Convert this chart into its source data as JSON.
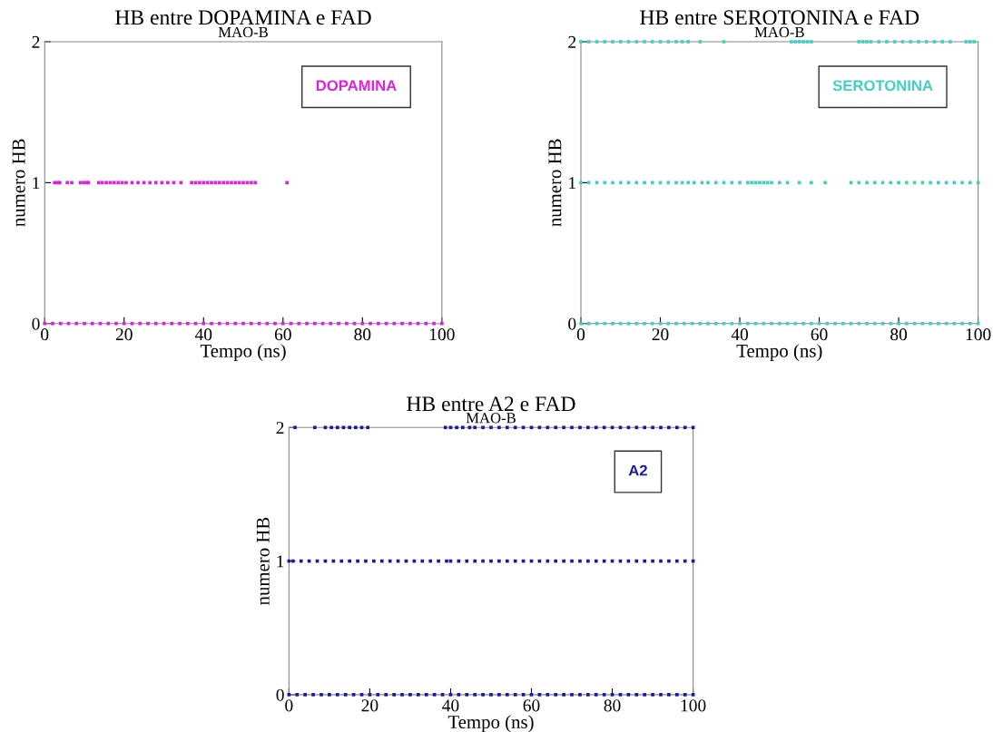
{
  "chart_data": [
    {
      "type": "scatter",
      "title": "HB entre DOPAMINA e FAD",
      "subtitle": "MAO-B",
      "xlabel": "Tempo (ns)",
      "ylabel": "numero HB",
      "xlim": [
        0,
        100
      ],
      "ylim": [
        0,
        2
      ],
      "xticks": [
        0,
        20,
        40,
        60,
        80,
        100
      ],
      "yticks": [
        0,
        1,
        2
      ],
      "marker": "square",
      "legend": "top right",
      "grid": false,
      "series": [
        {
          "name": "DOPAMINA",
          "color": "#e020e0",
          "x": [
            0,
            2,
            4,
            6,
            8,
            10,
            12,
            14,
            16,
            18,
            20,
            22,
            24,
            26,
            28,
            30,
            32,
            34,
            36,
            38,
            40,
            42,
            44,
            46,
            48,
            50,
            52,
            54,
            56,
            58,
            60,
            62,
            64,
            66,
            68,
            70,
            72,
            74,
            76,
            78,
            80,
            82,
            84,
            86,
            88,
            90,
            92,
            94,
            96,
            98,
            100,
            2.5,
            3.2,
            3.8,
            5.7,
            6.8,
            9,
            9.8,
            10.6,
            11,
            13.6,
            14.5,
            15.5,
            16.5,
            17.5,
            18.5,
            19.5,
            20.5,
            22,
            23.5,
            25,
            26.5,
            28,
            29.5,
            31,
            32.5,
            34.3,
            37,
            38,
            39,
            40,
            41,
            42,
            43,
            44,
            45,
            46,
            47,
            48,
            49,
            50,
            51,
            52,
            53,
            61
          ],
          "values": [
            0,
            0,
            0,
            0,
            0,
            0,
            0,
            0,
            0,
            0,
            0,
            0,
            0,
            0,
            0,
            0,
            0,
            0,
            0,
            0,
            0,
            0,
            0,
            0,
            0,
            0,
            0,
            0,
            0,
            0,
            0,
            0,
            0,
            0,
            0,
            0,
            0,
            0,
            0,
            0,
            0,
            0,
            0,
            0,
            0,
            0,
            0,
            0,
            0,
            0,
            0,
            1,
            1,
            1,
            1,
            1,
            1,
            1,
            1,
            1,
            1,
            1,
            1,
            1,
            1,
            1,
            1,
            1,
            1,
            1,
            1,
            1,
            1,
            1,
            1,
            1,
            1,
            1,
            1,
            1,
            1,
            1,
            1,
            1,
            1,
            1,
            1,
            1,
            1,
            1,
            1,
            1,
            1,
            1,
            1
          ]
        }
      ]
    },
    {
      "type": "scatter",
      "title": "HB entre SEROTONINA e FAD",
      "subtitle": "MAO-B",
      "xlabel": "Tempo (ns)",
      "ylabel": "numero HB",
      "xlim": [
        0,
        100
      ],
      "ylim": [
        0,
        2
      ],
      "xticks": [
        0,
        20,
        40,
        60,
        80,
        100
      ],
      "yticks": [
        0,
        1,
        2
      ],
      "marker": "square",
      "legend": "top right",
      "grid": false,
      "series": [
        {
          "name": "SEROTONINA",
          "color": "#40d0c0",
          "x": [
            0,
            2,
            4,
            6,
            8,
            10,
            12,
            14,
            16,
            18,
            20,
            22,
            24,
            26,
            28,
            30,
            32,
            34,
            36,
            38,
            40,
            42,
            44,
            46,
            48,
            50,
            52,
            54,
            56,
            58,
            60,
            62,
            64,
            66,
            68,
            70,
            72,
            74,
            76,
            78,
            80,
            82,
            84,
            86,
            88,
            90,
            92,
            94,
            96,
            98,
            100,
            0,
            2,
            4,
            6,
            8,
            10,
            12,
            14,
            16,
            18,
            20,
            22,
            24,
            25.5,
            27,
            28.5,
            30.5,
            32,
            34,
            36,
            38,
            40,
            42,
            43,
            44,
            45,
            46,
            47,
            48,
            50,
            52,
            55,
            58,
            61.5,
            68,
            70,
            72,
            74,
            76,
            78,
            80,
            82,
            84,
            86,
            88,
            90,
            92,
            94,
            96,
            98,
            100,
            0,
            2,
            4,
            6,
            8,
            10,
            12,
            14,
            16,
            18,
            20,
            22,
            24,
            25.5,
            27,
            30,
            36,
            53,
            54,
            55,
            56,
            57,
            58,
            70,
            71,
            72,
            73,
            75,
            77,
            79,
            81,
            83,
            85,
            87,
            89,
            91,
            93,
            97,
            98,
            99
          ],
          "values": [
            0,
            0,
            0,
            0,
            0,
            0,
            0,
            0,
            0,
            0,
            0,
            0,
            0,
            0,
            0,
            0,
            0,
            0,
            0,
            0,
            0,
            0,
            0,
            0,
            0,
            0,
            0,
            0,
            0,
            0,
            0,
            0,
            0,
            0,
            0,
            0,
            0,
            0,
            0,
            0,
            0,
            0,
            0,
            0,
            0,
            0,
            0,
            0,
            0,
            0,
            0,
            1,
            1,
            1,
            1,
            1,
            1,
            1,
            1,
            1,
            1,
            1,
            1,
            1,
            1,
            1,
            1,
            1,
            1,
            1,
            1,
            1,
            1,
            1,
            1,
            1,
            1,
            1,
            1,
            1,
            1,
            1,
            1,
            1,
            1,
            1,
            1,
            1,
            1,
            1,
            1,
            1,
            1,
            1,
            1,
            1,
            1,
            1,
            1,
            1,
            1,
            1,
            2,
            2,
            2,
            2,
            2,
            2,
            2,
            2,
            2,
            2,
            2,
            2,
            2,
            2,
            2,
            2,
            2,
            2,
            2,
            2,
            2,
            2,
            2,
            2,
            2,
            2,
            2,
            2,
            2,
            2,
            2,
            2,
            2,
            2,
            2,
            2,
            2,
            2,
            2,
            2
          ]
        }
      ]
    },
    {
      "type": "scatter",
      "title": "HB entre A2 e FAD",
      "subtitle": "MAO-B",
      "xlabel": "Tempo (ns)",
      "ylabel": "numero HB",
      "xlim": [
        0,
        100
      ],
      "ylim": [
        0,
        2
      ],
      "xticks": [
        0,
        20,
        40,
        60,
        80,
        100
      ],
      "yticks": [
        0,
        1,
        2
      ],
      "marker": "square",
      "legend": "top right",
      "grid": false,
      "series": [
        {
          "name": "A2",
          "color": "#1a1aa0",
          "x": [
            0,
            2,
            4,
            6,
            8,
            10,
            12,
            14,
            16,
            18,
            20,
            22,
            24,
            26,
            28,
            30,
            32,
            34,
            36,
            38,
            40,
            42,
            44,
            46,
            48,
            50,
            52,
            54,
            56,
            58,
            60,
            62,
            64,
            66,
            68,
            70,
            72,
            74,
            76,
            78,
            80,
            82,
            84,
            86,
            88,
            90,
            92,
            94,
            96,
            98,
            100,
            0,
            1,
            3,
            5,
            7,
            9,
            11,
            13,
            15,
            17,
            19,
            21,
            23,
            25,
            27,
            29,
            31,
            33,
            35,
            37,
            39,
            40,
            42,
            44,
            46,
            48,
            50,
            52,
            54,
            56,
            58,
            60,
            62,
            64,
            66,
            68,
            70,
            72,
            74,
            76,
            78,
            80,
            82,
            84,
            86,
            88,
            90,
            92,
            94,
            96,
            98,
            100,
            1.5,
            6.4,
            9,
            10.5,
            12,
            13.5,
            15,
            16.5,
            18,
            19.5,
            38.7,
            40,
            41.5,
            43,
            44.7,
            46,
            48,
            50,
            52,
            54,
            56,
            58,
            60,
            62,
            64,
            66,
            68,
            70,
            72,
            74,
            76,
            78,
            80,
            82,
            84,
            86,
            88,
            90,
            92,
            94,
            96,
            98,
            100
          ],
          "values": [
            0,
            0,
            0,
            0,
            0,
            0,
            0,
            0,
            0,
            0,
            0,
            0,
            0,
            0,
            0,
            0,
            0,
            0,
            0,
            0,
            0,
            0,
            0,
            0,
            0,
            0,
            0,
            0,
            0,
            0,
            0,
            0,
            0,
            0,
            0,
            0,
            0,
            0,
            0,
            0,
            0,
            0,
            0,
            0,
            0,
            0,
            0,
            0,
            0,
            0,
            0,
            1,
            1,
            1,
            1,
            1,
            1,
            1,
            1,
            1,
            1,
            1,
            1,
            1,
            1,
            1,
            1,
            1,
            1,
            1,
            1,
            1,
            1,
            1,
            1,
            1,
            1,
            1,
            1,
            1,
            1,
            1,
            1,
            1,
            1,
            1,
            1,
            1,
            1,
            1,
            1,
            1,
            1,
            1,
            1,
            1,
            1,
            1,
            1,
            1,
            1,
            1,
            1,
            2,
            2,
            2,
            2,
            2,
            2,
            2,
            2,
            2,
            2,
            2,
            2,
            2,
            2,
            2,
            2,
            2,
            2,
            2,
            2,
            2,
            2,
            2,
            2,
            2,
            2,
            2,
            2,
            2,
            2,
            2,
            2,
            2,
            2,
            2,
            2,
            2,
            2,
            2,
            2,
            2,
            2,
            2
          ]
        }
      ]
    }
  ]
}
